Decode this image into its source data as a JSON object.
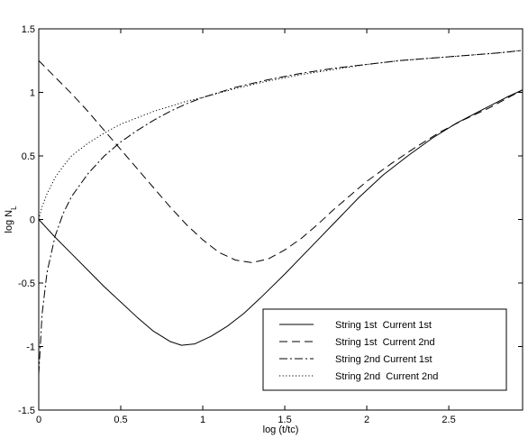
{
  "chart_data": {
    "type": "line",
    "xlabel": "log (t/tc)",
    "ylabel": "log N",
    "ylabel_sub": "L",
    "xlim": [
      0,
      2.95
    ],
    "ylim": [
      -1.5,
      1.5
    ],
    "xticks": [
      {
        "value": 0,
        "label": "0"
      },
      {
        "value": 0.5,
        "label": "0.5"
      },
      {
        "value": 1,
        "label": "1"
      },
      {
        "value": 1.5,
        "label": "1.5"
      },
      {
        "value": 2,
        "label": "2"
      },
      {
        "value": 2.5,
        "label": "2.5"
      }
    ],
    "yticks": [
      {
        "value": -1.5,
        "label": "-1.5"
      },
      {
        "value": -1,
        "label": "-1"
      },
      {
        "value": -0.5,
        "label": "-0.5"
      },
      {
        "value": 0,
        "label": "0"
      },
      {
        "value": 0.5,
        "label": "0.5"
      },
      {
        "value": 1,
        "label": "1"
      },
      {
        "value": 1.5,
        "label": "1.5"
      }
    ],
    "grid": false,
    "legend_position": "bottom-right",
    "series": [
      {
        "name": "String 1st  Current 1st",
        "dash": "solid",
        "x": [
          0,
          0.1,
          0.2,
          0.3,
          0.4,
          0.5,
          0.6,
          0.7,
          0.8,
          0.87,
          0.95,
          1.05,
          1.15,
          1.25,
          1.35,
          1.5,
          1.65,
          1.8,
          1.95,
          2.1,
          2.25,
          2.4,
          2.55,
          2.7,
          2.85,
          2.95
        ],
        "y": [
          0,
          -0.14,
          -0.27,
          -0.4,
          -0.53,
          -0.65,
          -0.77,
          -0.88,
          -0.96,
          -0.99,
          -0.98,
          -0.92,
          -0.84,
          -0.74,
          -0.62,
          -0.43,
          -0.23,
          -0.03,
          0.17,
          0.35,
          0.5,
          0.64,
          0.76,
          0.86,
          0.96,
          1.02
        ]
      },
      {
        "name": "String 1st  Current 2nd",
        "dash": "dashed",
        "x": [
          0,
          0.1,
          0.2,
          0.3,
          0.4,
          0.5,
          0.6,
          0.7,
          0.8,
          0.9,
          1.0,
          1.1,
          1.2,
          1.3,
          1.4,
          1.5,
          1.6,
          1.7,
          1.8,
          1.9,
          2.0,
          2.15,
          2.3,
          2.45,
          2.6,
          2.75,
          2.95
        ],
        "y": [
          1.25,
          1.12,
          0.99,
          0.85,
          0.7,
          0.55,
          0.4,
          0.25,
          0.1,
          -0.04,
          -0.16,
          -0.26,
          -0.32,
          -0.34,
          -0.31,
          -0.24,
          -0.15,
          -0.04,
          0.08,
          0.19,
          0.3,
          0.44,
          0.57,
          0.69,
          0.79,
          0.88,
          1.02
        ]
      },
      {
        "name": "String 2nd Current 1st",
        "dash": "dashdot",
        "x": [
          0,
          0.02,
          0.05,
          0.1,
          0.15,
          0.2,
          0.3,
          0.4,
          0.5,
          0.6,
          0.7,
          0.8,
          0.9,
          1.0,
          1.2,
          1.4,
          1.6,
          1.8,
          2.0,
          2.2,
          2.4,
          2.6,
          2.8,
          2.95
        ],
        "y": [
          -1.22,
          -0.75,
          -0.42,
          -0.13,
          0.05,
          0.18,
          0.36,
          0.5,
          0.61,
          0.7,
          0.78,
          0.85,
          0.91,
          0.96,
          1.04,
          1.1,
          1.15,
          1.19,
          1.22,
          1.25,
          1.27,
          1.29,
          1.31,
          1.33
        ]
      },
      {
        "name": "String 2nd  Current 2nd",
        "dash": "dotted",
        "x": [
          0,
          0.02,
          0.05,
          0.1,
          0.15,
          0.2,
          0.3,
          0.4,
          0.5,
          0.6,
          0.7,
          0.8,
          0.9,
          1.0,
          1.2,
          1.4,
          1.6,
          1.8,
          2.0,
          2.2,
          2.4,
          2.6,
          2.8,
          2.95
        ],
        "y": [
          0,
          0.1,
          0.2,
          0.33,
          0.42,
          0.5,
          0.6,
          0.68,
          0.75,
          0.8,
          0.85,
          0.89,
          0.93,
          0.96,
          1.03,
          1.09,
          1.14,
          1.18,
          1.22,
          1.25,
          1.27,
          1.29,
          1.31,
          1.33
        ]
      }
    ]
  }
}
